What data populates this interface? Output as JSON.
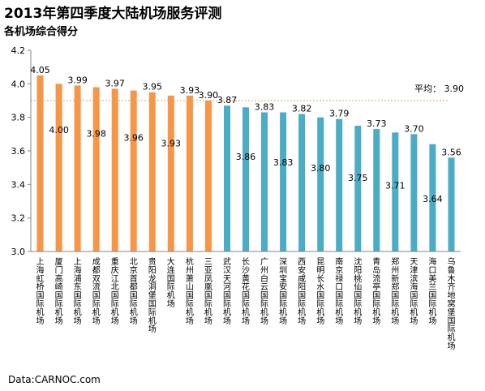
{
  "title": "2013年第四季度大陆机场服务评测",
  "subtitle": "各机场综合得分",
  "source": "Data:CARNOC.com",
  "chart_data": {
    "type": "bar",
    "ylim": [
      3.0,
      4.2
    ],
    "yticks": [
      "3.0",
      "3.2",
      "3.4",
      "3.6",
      "3.8",
      "4.0",
      "4.2"
    ],
    "categories": [
      "上海虹桥国际机场",
      "厦门高崎国际机场",
      "上海浦东国际机场",
      "成都双流国际机场",
      "重庆江北国际机场",
      "北京首都国际机场",
      "贵阳龙洞堡国际机场",
      "大连国际机场",
      "杭州萧山国际机场",
      "三亚凤凰国际机场",
      "武汉天河国际机场",
      "长沙黄花国际机场",
      "广州白云国际机场",
      "深圳宝安国际机场",
      "西安咸阳国际机场",
      "昆明长水国际机场",
      "南京禄口国际机场",
      "沈阳桃仙国际机场",
      "青岛流亭国际机场",
      "郑州新郑国际机场",
      "天津滨海国际机场",
      "海口美兰国际机场",
      "乌鲁木齐地窝堡国际机场"
    ],
    "values": [
      4.05,
      4.0,
      3.99,
      3.98,
      3.97,
      3.96,
      3.95,
      3.93,
      3.93,
      3.9,
      3.87,
      3.86,
      3.83,
      3.83,
      3.82,
      3.8,
      3.79,
      3.75,
      3.73,
      3.71,
      3.7,
      3.64,
      3.56
    ],
    "labels": [
      "4.05",
      "4.00",
      "3.99",
      "3.98",
      "3.97",
      "3.96",
      "3.95",
      "3.93",
      "3.93",
      "3.90",
      "3.87",
      "3.86",
      "3.83",
      "3.83",
      "3.82",
      "3.80",
      "3.79",
      "3.75",
      "3.73",
      "3.71",
      "3.70",
      "3.64",
      "3.56"
    ],
    "label_position": [
      "above",
      "inside",
      "above",
      "inside",
      "above",
      "inside",
      "above",
      "inside",
      "above",
      "above",
      "above",
      "inside",
      "above",
      "inside",
      "above",
      "inside",
      "above",
      "inside",
      "above",
      "inside",
      "above",
      "inside",
      "above"
    ],
    "colors": {
      "orange": "#F79646",
      "blue": "#4BACC6",
      "avg_line": "#D8A460",
      "axis": "#868686"
    },
    "orange_count": 10,
    "average": {
      "label": "平均： 3.90",
      "value": 3.9
    },
    "grid": false,
    "legend": "none"
  }
}
